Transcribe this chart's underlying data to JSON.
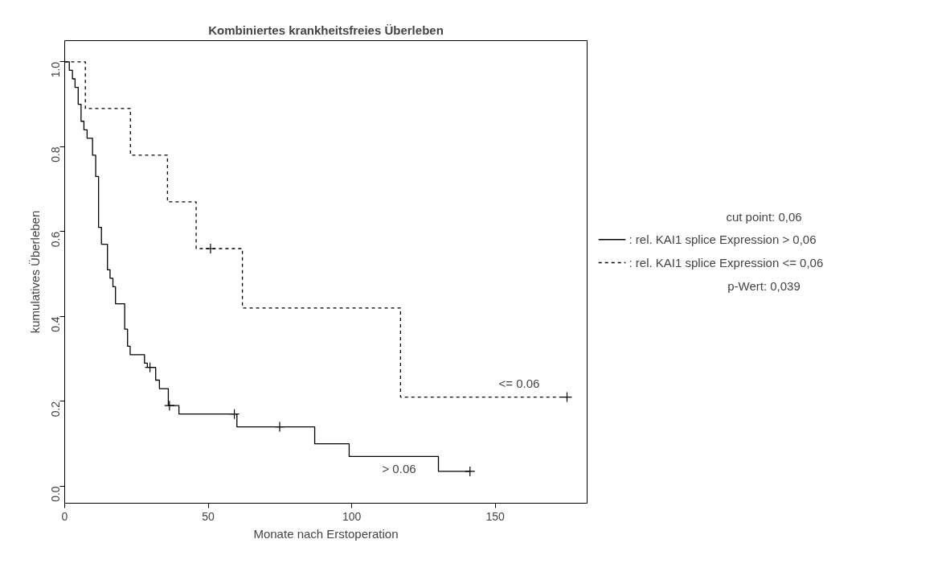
{
  "chart_data": {
    "type": "step",
    "title": "Kombiniertes krankheitsfreies Überleben",
    "xlabel": "Monate nach Erstoperation",
    "ylabel": "kumulatives Überleben",
    "legend_title": "cut point: 0,06",
    "xlim": [
      0,
      182
    ],
    "ylim": [
      -0.04,
      1.05
    ],
    "xticks": [
      0,
      50,
      100,
      150
    ],
    "yticks": [
      {
        "value": 0,
        "label": "0.0"
      },
      0.2,
      0.4,
      0.6,
      0.8,
      {
        "value": 1,
        "label": "1.0"
      }
    ],
    "grid": false,
    "legend": "right",
    "series": [
      {
        "name": ": rel. KAI1 splice Expression > 0,06",
        "color": "#000000",
        "line_style": "solid",
        "x": [
          0,
          1.6,
          2.7,
          3.6,
          4.7,
          5.7,
          6.7,
          7.8,
          9.7,
          10.8,
          11.8,
          12.8,
          14.9,
          15.8,
          16.8,
          17.7,
          20.9,
          21.9,
          22.8,
          27.8,
          28.8,
          31.7,
          33.0,
          36.1,
          39.8,
          60.0,
          87.1,
          99.1,
          130.2,
          141.2
        ],
        "values": [
          1.0,
          0.98,
          0.96,
          0.94,
          0.9,
          0.86,
          0.84,
          0.82,
          0.78,
          0.73,
          0.61,
          0.57,
          0.51,
          0.49,
          0.47,
          0.43,
          0.37,
          0.33,
          0.31,
          0.29,
          0.28,
          0.25,
          0.23,
          0.19,
          0.17,
          0.14,
          0.1,
          0.07,
          0.035,
          0.035
        ]
      },
      {
        "name": ": rel. KAI1 splice Expression <= 0,06",
        "color": "#000000",
        "line_style": "dashed",
        "x": [
          0,
          7.2,
          22.9,
          35.8,
          45.8,
          61.9,
          117.0,
          175.0
        ],
        "values": [
          1.0,
          0.89,
          0.78,
          0.67,
          0.56,
          0.42,
          0.21,
          0.21
        ]
      },
      {
        "type": "scatter",
        "marker": "cross",
        "color": "#000000",
        "x": [
          29.7,
          36.5,
          59.1,
          74.9,
          141.2
        ],
        "values": [
          0.28,
          0.19,
          0.17,
          0.14,
          0.035
        ]
      },
      {
        "type": "scatter",
        "marker": "cross",
        "color": "#000000",
        "x": [
          50.8,
          175.0
        ],
        "values": [
          0.56,
          0.21
        ]
      }
    ],
    "annotations": [
      "<= 0.06",
      "> 0.06",
      "p-Wert: 0,039"
    ]
  }
}
